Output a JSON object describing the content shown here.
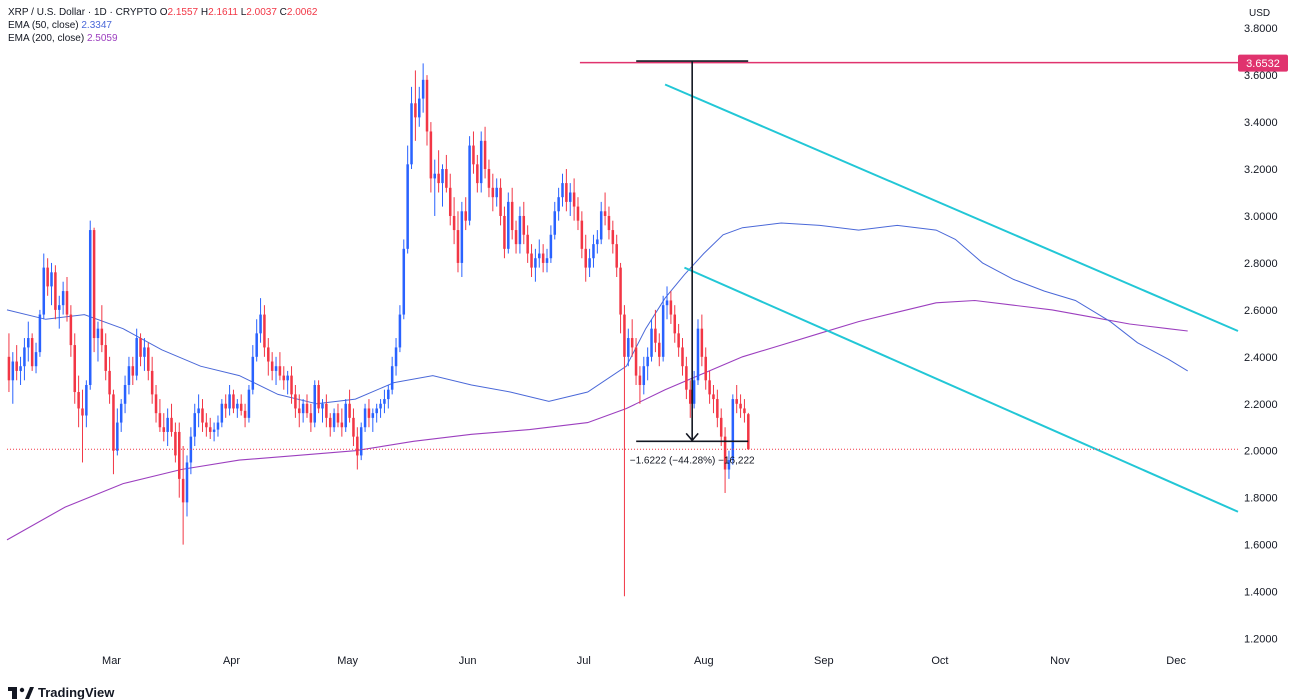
{
  "legend": {
    "symbol": "XRP / U.S. Dollar · 1D · CRYPTO",
    "ohlc": {
      "open_label": "O",
      "open": "2.1557",
      "high_label": "H",
      "high": "2.1611",
      "low_label": "L",
      "low": "2.0037",
      "close_label": "C",
      "close": "2.0062"
    },
    "ema50_label": "EMA (50, close)",
    "ema50_value": "2.3347",
    "ema200_label": "EMA (200, close)",
    "ema200_value": "2.5059"
  },
  "axis": {
    "currency": "USD"
  },
  "brand": {
    "name": "TradingView"
  },
  "colors": {
    "up": "#2962ff",
    "down": "#f23645",
    "ema50": "#4a68d8",
    "ema200": "#9c3fbf",
    "channel": "#22c7d6",
    "resistance": "#e0336e"
  },
  "chart_data": {
    "type": "candlestick",
    "ylim": [
      1.1,
      3.92
    ],
    "y_ticks": [
      "3.8000",
      "3.6000",
      "3.4000",
      "3.2000",
      "3.0000",
      "2.8000",
      "2.6000",
      "2.4000",
      "2.2000",
      "2.0000",
      "1.8000",
      "1.6000",
      "1.4000",
      "1.2000"
    ],
    "x_ticks": [
      {
        "label": "Mar",
        "day": 27
      },
      {
        "label": "Apr",
        "day": 58
      },
      {
        "label": "May",
        "day": 88
      },
      {
        "label": "Jun",
        "day": 119
      },
      {
        "label": "Jul",
        "day": 149
      },
      {
        "label": "Aug",
        "day": 180
      },
      {
        "label": "Sep",
        "day": 211
      },
      {
        "label": "Oct",
        "day": 241
      },
      {
        "label": "Nov",
        "day": 272
      },
      {
        "label": "Dec",
        "day": 302
      }
    ],
    "x_range_days": [
      0,
      318
    ],
    "resistance": {
      "value": "3.6532",
      "price": 3.6532
    },
    "current_price": 2.0062,
    "measure": {
      "day": 177,
      "top": 3.66,
      "bottom": 2.04,
      "label": "−1.6222 (−44.28%) −16,222"
    },
    "channel_upper": [
      {
        "day": 170,
        "price": 3.56
      },
      {
        "day": 318,
        "price": 2.51
      }
    ],
    "channel_lower": [
      {
        "day": 175,
        "price": 2.78
      },
      {
        "day": 318,
        "price": 1.74
      }
    ],
    "ema50": [
      {
        "day": 0,
        "price": 2.6
      },
      {
        "day": 10,
        "price": 2.56
      },
      {
        "day": 20,
        "price": 2.58
      },
      {
        "day": 30,
        "price": 2.52
      },
      {
        "day": 40,
        "price": 2.43
      },
      {
        "day": 50,
        "price": 2.36
      },
      {
        "day": 60,
        "price": 2.32
      },
      {
        "day": 70,
        "price": 2.24
      },
      {
        "day": 80,
        "price": 2.2
      },
      {
        "day": 90,
        "price": 2.22
      },
      {
        "day": 100,
        "price": 2.29
      },
      {
        "day": 110,
        "price": 2.32
      },
      {
        "day": 120,
        "price": 2.28
      },
      {
        "day": 130,
        "price": 2.25
      },
      {
        "day": 140,
        "price": 2.21
      },
      {
        "day": 150,
        "price": 2.25
      },
      {
        "day": 160,
        "price": 2.36
      },
      {
        "day": 165,
        "price": 2.52
      },
      {
        "day": 170,
        "price": 2.65
      },
      {
        "day": 175,
        "price": 2.75
      },
      {
        "day": 180,
        "price": 2.84
      },
      {
        "day": 185,
        "price": 2.92
      },
      {
        "day": 190,
        "price": 2.95
      },
      {
        "day": 200,
        "price": 2.97
      },
      {
        "day": 210,
        "price": 2.96
      },
      {
        "day": 220,
        "price": 2.94
      },
      {
        "day": 230,
        "price": 2.96
      },
      {
        "day": 240,
        "price": 2.94
      },
      {
        "day": 245,
        "price": 2.9
      },
      {
        "day": 252,
        "price": 2.8
      },
      {
        "day": 260,
        "price": 2.73
      },
      {
        "day": 268,
        "price": 2.68
      },
      {
        "day": 276,
        "price": 2.64
      },
      {
        "day": 285,
        "price": 2.55
      },
      {
        "day": 292,
        "price": 2.46
      },
      {
        "day": 300,
        "price": 2.39
      },
      {
        "day": 305,
        "price": 2.34
      }
    ],
    "ema200": [
      {
        "day": 0,
        "price": 1.62
      },
      {
        "day": 15,
        "price": 1.76
      },
      {
        "day": 30,
        "price": 1.86
      },
      {
        "day": 45,
        "price": 1.92
      },
      {
        "day": 60,
        "price": 1.96
      },
      {
        "day": 75,
        "price": 1.98
      },
      {
        "day": 90,
        "price": 2.0
      },
      {
        "day": 105,
        "price": 2.04
      },
      {
        "day": 120,
        "price": 2.07
      },
      {
        "day": 135,
        "price": 2.09
      },
      {
        "day": 150,
        "price": 2.12
      },
      {
        "day": 160,
        "price": 2.18
      },
      {
        "day": 170,
        "price": 2.26
      },
      {
        "day": 180,
        "price": 2.33
      },
      {
        "day": 190,
        "price": 2.4
      },
      {
        "day": 200,
        "price": 2.45
      },
      {
        "day": 210,
        "price": 2.5
      },
      {
        "day": 220,
        "price": 2.55
      },
      {
        "day": 230,
        "price": 2.59
      },
      {
        "day": 240,
        "price": 2.63
      },
      {
        "day": 250,
        "price": 2.64
      },
      {
        "day": 260,
        "price": 2.62
      },
      {
        "day": 270,
        "price": 2.6
      },
      {
        "day": 280,
        "price": 2.57
      },
      {
        "day": 290,
        "price": 2.54
      },
      {
        "day": 300,
        "price": 2.52
      },
      {
        "day": 305,
        "price": 2.51
      }
    ],
    "candles": [
      [
        2.4,
        2.5,
        2.25,
        2.3
      ],
      [
        2.3,
        2.42,
        2.2,
        2.38
      ],
      [
        2.38,
        2.45,
        2.3,
        2.34
      ],
      [
        2.34,
        2.4,
        2.28,
        2.36
      ],
      [
        2.36,
        2.48,
        2.3,
        2.44
      ],
      [
        2.44,
        2.55,
        2.38,
        2.48
      ],
      [
        2.48,
        2.5,
        2.34,
        2.36
      ],
      [
        2.36,
        2.46,
        2.33,
        2.42
      ],
      [
        2.42,
        2.6,
        2.4,
        2.58
      ],
      [
        2.58,
        2.84,
        2.56,
        2.78
      ],
      [
        2.78,
        2.82,
        2.66,
        2.7
      ],
      [
        2.7,
        2.8,
        2.62,
        2.76
      ],
      [
        2.76,
        2.79,
        2.56,
        2.6
      ],
      [
        2.6,
        2.66,
        2.52,
        2.62
      ],
      [
        2.62,
        2.72,
        2.58,
        2.68
      ],
      [
        2.68,
        2.74,
        2.55,
        2.58
      ],
      [
        2.58,
        2.62,
        2.4,
        2.45
      ],
      [
        2.45,
        2.5,
        2.2,
        2.25
      ],
      [
        2.25,
        2.32,
        2.1,
        2.18
      ],
      [
        2.18,
        2.26,
        1.95,
        2.15
      ],
      [
        2.15,
        2.3,
        2.1,
        2.28
      ],
      [
        2.28,
        2.98,
        2.26,
        2.94
      ],
      [
        2.94,
        2.95,
        2.42,
        2.48
      ],
      [
        2.48,
        2.55,
        2.38,
        2.52
      ],
      [
        2.52,
        2.62,
        2.42,
        2.45
      ],
      [
        2.45,
        2.5,
        2.3,
        2.34
      ],
      [
        2.34,
        2.4,
        2.2,
        2.24
      ],
      [
        2.24,
        2.26,
        1.9,
        2.0
      ],
      [
        2.0,
        2.18,
        1.98,
        2.12
      ],
      [
        2.12,
        2.22,
        2.08,
        2.2
      ],
      [
        2.2,
        2.32,
        2.16,
        2.28
      ],
      [
        2.28,
        2.4,
        2.24,
        2.36
      ],
      [
        2.36,
        2.4,
        2.28,
        2.32
      ],
      [
        2.32,
        2.52,
        2.3,
        2.48
      ],
      [
        2.48,
        2.5,
        2.36,
        2.4
      ],
      [
        2.4,
        2.48,
        2.34,
        2.44
      ],
      [
        2.44,
        2.46,
        2.3,
        2.34
      ],
      [
        2.34,
        2.4,
        2.2,
        2.24
      ],
      [
        2.24,
        2.28,
        2.12,
        2.16
      ],
      [
        2.16,
        2.22,
        2.08,
        2.1
      ],
      [
        2.1,
        2.16,
        2.04,
        2.08
      ],
      [
        2.08,
        2.18,
        2.02,
        2.14
      ],
      [
        2.14,
        2.2,
        2.06,
        2.08
      ],
      [
        2.08,
        2.12,
        1.95,
        1.98
      ],
      [
        2.08,
        2.12,
        1.8,
        1.88
      ],
      [
        1.88,
        2.02,
        1.6,
        1.78
      ],
      [
        1.78,
        1.98,
        1.72,
        1.95
      ],
      [
        1.95,
        2.1,
        1.9,
        2.06
      ],
      [
        2.06,
        2.2,
        2.02,
        2.16
      ],
      [
        2.16,
        2.24,
        2.1,
        2.18
      ],
      [
        2.18,
        2.22,
        2.08,
        2.12
      ],
      [
        2.12,
        2.16,
        2.06,
        2.1
      ],
      [
        2.1,
        2.14,
        2.05,
        2.08
      ],
      [
        2.08,
        2.12,
        2.04,
        2.09
      ],
      [
        2.09,
        2.15,
        2.06,
        2.12
      ],
      [
        2.12,
        2.22,
        2.1,
        2.2
      ],
      [
        2.2,
        2.24,
        2.14,
        2.18
      ],
      [
        2.18,
        2.28,
        2.15,
        2.24
      ],
      [
        2.24,
        2.26,
        2.16,
        2.18
      ],
      [
        2.18,
        2.22,
        2.14,
        2.2
      ],
      [
        2.2,
        2.24,
        2.15,
        2.17
      ],
      [
        2.17,
        2.2,
        2.1,
        2.14
      ],
      [
        2.14,
        2.28,
        2.12,
        2.26
      ],
      [
        2.26,
        2.45,
        2.24,
        2.4
      ],
      [
        2.4,
        2.56,
        2.38,
        2.5
      ],
      [
        2.5,
        2.65,
        2.46,
        2.58
      ],
      [
        2.58,
        2.62,
        2.4,
        2.44
      ],
      [
        2.44,
        2.48,
        2.32,
        2.38
      ],
      [
        2.38,
        2.42,
        2.3,
        2.34
      ],
      [
        2.34,
        2.4,
        2.28,
        2.36
      ],
      [
        2.36,
        2.42,
        2.3,
        2.32
      ],
      [
        2.32,
        2.36,
        2.26,
        2.3
      ],
      [
        2.3,
        2.34,
        2.24,
        2.32
      ],
      [
        2.32,
        2.36,
        2.2,
        2.24
      ],
      [
        2.24,
        2.28,
        2.14,
        2.18
      ],
      [
        2.18,
        2.24,
        2.1,
        2.16
      ],
      [
        2.16,
        2.22,
        2.12,
        2.2
      ],
      [
        2.2,
        2.24,
        2.14,
        2.16
      ],
      [
        2.16,
        2.2,
        2.08,
        2.12
      ],
      [
        2.12,
        2.3,
        2.1,
        2.28
      ],
      [
        2.28,
        2.3,
        2.16,
        2.18
      ],
      [
        2.18,
        2.22,
        2.12,
        2.2
      ],
      [
        2.2,
        2.24,
        2.1,
        2.14
      ],
      [
        2.14,
        2.16,
        2.06,
        2.1
      ],
      [
        2.1,
        2.18,
        2.08,
        2.16
      ],
      [
        2.16,
        2.2,
        2.1,
        2.12
      ],
      [
        2.12,
        2.18,
        2.06,
        2.1
      ],
      [
        2.1,
        2.22,
        2.08,
        2.2
      ],
      [
        2.2,
        2.26,
        2.12,
        2.14
      ],
      [
        2.14,
        2.18,
        2.02,
        2.06
      ],
      [
        2.06,
        2.1,
        1.92,
        1.98
      ],
      [
        1.98,
        2.12,
        1.96,
        2.1
      ],
      [
        2.1,
        2.2,
        2.08,
        2.18
      ],
      [
        2.18,
        2.22,
        2.1,
        2.14
      ],
      [
        2.14,
        2.18,
        2.08,
        2.16
      ],
      [
        2.16,
        2.2,
        2.12,
        2.18
      ],
      [
        2.18,
        2.22,
        2.14,
        2.2
      ],
      [
        2.2,
        2.26,
        2.16,
        2.22
      ],
      [
        2.22,
        2.28,
        2.18,
        2.26
      ],
      [
        2.26,
        2.4,
        2.24,
        2.36
      ],
      [
        2.36,
        2.48,
        2.32,
        2.44
      ],
      [
        2.44,
        2.62,
        2.42,
        2.58
      ],
      [
        2.58,
        2.9,
        2.56,
        2.86
      ],
      [
        2.86,
        3.3,
        2.84,
        3.22
      ],
      [
        3.22,
        3.55,
        3.2,
        3.48
      ],
      [
        3.48,
        3.62,
        3.32,
        3.42
      ],
      [
        3.42,
        3.55,
        3.38,
        3.5
      ],
      [
        3.5,
        3.65,
        3.44,
        3.58
      ],
      [
        3.58,
        3.6,
        3.3,
        3.36
      ],
      [
        3.36,
        3.4,
        3.1,
        3.16
      ],
      [
        3.16,
        3.24,
        3.0,
        3.18
      ],
      [
        3.18,
        3.28,
        3.1,
        3.14
      ],
      [
        3.14,
        3.22,
        3.04,
        3.2
      ],
      [
        3.2,
        3.26,
        3.1,
        3.12
      ],
      [
        3.12,
        3.18,
        2.96,
        3.0
      ],
      [
        3.0,
        3.08,
        2.88,
        2.94
      ],
      [
        2.94,
        3.02,
        2.76,
        2.8
      ],
      [
        2.8,
        3.06,
        2.74,
        3.02
      ],
      [
        3.02,
        3.08,
        2.94,
        2.98
      ],
      [
        2.98,
        3.34,
        2.96,
        3.3
      ],
      [
        3.3,
        3.36,
        3.18,
        3.22
      ],
      [
        3.22,
        3.26,
        3.1,
        3.14
      ],
      [
        3.14,
        3.36,
        3.1,
        3.32
      ],
      [
        3.32,
        3.38,
        3.16,
        3.2
      ],
      [
        3.2,
        3.24,
        3.08,
        3.12
      ],
      [
        3.12,
        3.18,
        3.02,
        3.08
      ],
      [
        3.08,
        3.16,
        3.04,
        3.12
      ],
      [
        3.12,
        3.16,
        2.96,
        3.0
      ],
      [
        3.0,
        3.04,
        2.82,
        2.86
      ],
      [
        2.86,
        3.1,
        2.84,
        3.06
      ],
      [
        3.06,
        3.12,
        2.9,
        2.94
      ],
      [
        2.94,
        2.98,
        2.84,
        2.88
      ],
      [
        2.88,
        3.04,
        2.84,
        3.0
      ],
      [
        3.0,
        3.06,
        2.88,
        2.92
      ],
      [
        2.92,
        2.96,
        2.8,
        2.84
      ],
      [
        2.84,
        2.88,
        2.74,
        2.78
      ],
      [
        2.78,
        2.86,
        2.72,
        2.82
      ],
      [
        2.82,
        2.9,
        2.78,
        2.84
      ],
      [
        2.84,
        2.88,
        2.76,
        2.8
      ],
      [
        2.8,
        2.86,
        2.76,
        2.82
      ],
      [
        2.82,
        2.96,
        2.8,
        2.92
      ],
      [
        2.92,
        3.06,
        2.9,
        3.02
      ],
      [
        3.02,
        3.12,
        2.98,
        3.08
      ],
      [
        3.08,
        3.18,
        3.04,
        3.14
      ],
      [
        3.14,
        3.2,
        3.02,
        3.06
      ],
      [
        3.06,
        3.14,
        3.0,
        3.1
      ],
      [
        3.1,
        3.16,
        2.98,
        3.04
      ],
      [
        3.04,
        3.08,
        2.94,
        2.98
      ],
      [
        2.98,
        3.02,
        2.82,
        2.86
      ],
      [
        2.86,
        2.92,
        2.72,
        2.78
      ],
      [
        2.78,
        2.86,
        2.74,
        2.82
      ],
      [
        2.82,
        2.92,
        2.78,
        2.88
      ],
      [
        2.88,
        2.94,
        2.84,
        2.9
      ],
      [
        2.9,
        3.06,
        2.88,
        3.02
      ],
      [
        3.02,
        3.1,
        2.96,
        3.0
      ],
      [
        3.0,
        3.04,
        2.9,
        2.94
      ],
      [
        2.94,
        2.98,
        2.84,
        2.88
      ],
      [
        2.88,
        2.92,
        2.74,
        2.78
      ],
      [
        2.78,
        2.8,
        2.5,
        2.58
      ],
      [
        2.58,
        2.62,
        1.38,
        2.4
      ],
      [
        2.4,
        2.52,
        2.36,
        2.48
      ],
      [
        2.48,
        2.56,
        2.4,
        2.44
      ],
      [
        2.44,
        2.48,
        2.28,
        2.32
      ],
      [
        2.32,
        2.36,
        2.2,
        2.28
      ],
      [
        2.28,
        2.4,
        2.24,
        2.36
      ],
      [
        2.36,
        2.44,
        2.3,
        2.4
      ],
      [
        2.4,
        2.56,
        2.38,
        2.52
      ],
      [
        2.52,
        2.6,
        2.42,
        2.46
      ],
      [
        2.46,
        2.5,
        2.36,
        2.4
      ],
      [
        2.4,
        2.66,
        2.38,
        2.62
      ],
      [
        2.62,
        2.7,
        2.56,
        2.64
      ],
      [
        2.64,
        2.68,
        2.54,
        2.58
      ],
      [
        2.58,
        2.62,
        2.46,
        2.5
      ],
      [
        2.5,
        2.54,
        2.4,
        2.44
      ],
      [
        2.44,
        2.48,
        2.32,
        2.36
      ],
      [
        2.36,
        2.4,
        2.22,
        2.26
      ],
      [
        2.26,
        2.3,
        2.14,
        2.2
      ],
      [
        2.2,
        2.34,
        2.18,
        2.3
      ],
      [
        2.3,
        2.56,
        2.28,
        2.52
      ],
      [
        2.52,
        2.58,
        2.36,
        2.4
      ],
      [
        2.4,
        2.44,
        2.26,
        2.3
      ],
      [
        2.3,
        2.34,
        2.2,
        2.24
      ],
      [
        2.24,
        2.28,
        2.16,
        2.22
      ],
      [
        2.22,
        2.26,
        2.1,
        2.14
      ],
      [
        2.14,
        2.18,
        2.02,
        2.06
      ],
      [
        2.06,
        2.1,
        1.82,
        1.92
      ],
      [
        1.92,
        2.0,
        1.88,
        1.96
      ],
      [
        1.96,
        2.24,
        1.94,
        2.22
      ],
      [
        2.22,
        2.28,
        2.16,
        2.2
      ],
      [
        2.2,
        2.24,
        2.14,
        2.18
      ],
      [
        2.18,
        2.22,
        2.12,
        2.16
      ],
      [
        2.1557,
        2.1611,
        2.0037,
        2.0062
      ]
    ]
  }
}
